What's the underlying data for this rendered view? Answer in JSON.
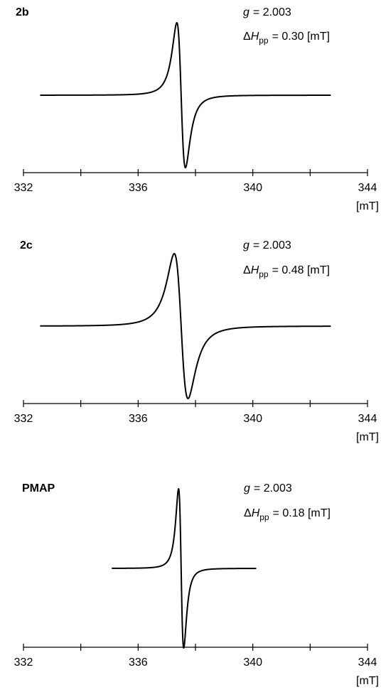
{
  "chart_data": [
    {
      "type": "line",
      "label": "2b",
      "g_prefix": "g",
      "g_value": "= 2.003",
      "dh_prefix": "ΔH",
      "dh_sub": "pp",
      "dh_value": "= 0.30 [mT]",
      "g": 2.003,
      "dHpp_mT": 0.3,
      "center_mT": 337.5,
      "x_range_mT": [
        332.6,
        342.7
      ],
      "xlim": [
        332,
        344
      ],
      "ticks": [
        332,
        334,
        336,
        338,
        340,
        342,
        344
      ],
      "tick_labels": [
        "332",
        "336",
        "340",
        "344"
      ],
      "unit_label": "[mT]"
    },
    {
      "type": "line",
      "label": "2c",
      "g_prefix": "g",
      "g_value": "= 2.003",
      "dh_prefix": "ΔH",
      "dh_sub": "pp",
      "dh_value": "= 0.48 [mT]",
      "g": 2.003,
      "dHpp_mT": 0.48,
      "center_mT": 337.5,
      "x_range_mT": [
        332.6,
        342.7
      ],
      "xlim": [
        332,
        344
      ],
      "ticks": [
        332,
        334,
        336,
        338,
        340,
        342,
        344
      ],
      "tick_labels": [
        "332",
        "336",
        "340",
        "344"
      ],
      "unit_label": "[mT]"
    },
    {
      "type": "line",
      "label": "PMAP",
      "g_prefix": "g",
      "g_value": "= 2.003",
      "dh_prefix": "ΔH",
      "dh_sub": "pp",
      "dh_value": "= 0.18 [mT]",
      "g": 2.003,
      "dHpp_mT": 0.18,
      "center_mT": 337.5,
      "x_range_mT": [
        335.1,
        340.1
      ],
      "xlim": [
        332,
        344
      ],
      "ticks": [
        332,
        334,
        336,
        338,
        340,
        342,
        344
      ],
      "tick_labels": [
        "332",
        "336",
        "340",
        "344"
      ],
      "unit_label": "[mT]"
    }
  ]
}
